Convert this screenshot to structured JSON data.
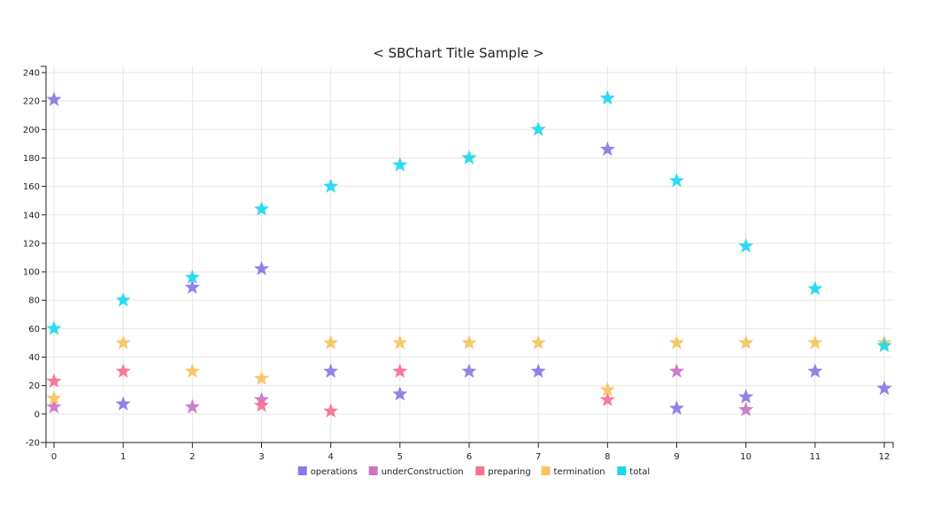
{
  "chart_data": {
    "type": "scatter",
    "title": "< SBChart Title Sample >",
    "marker": "star",
    "grid": true,
    "legend_position": "bottom",
    "x": [
      0,
      1,
      2,
      3,
      4,
      5,
      6,
      7,
      8,
      9,
      10,
      11,
      12
    ],
    "xlim": [
      0,
      12
    ],
    "ylim": [
      -20,
      240
    ],
    "y_ticks": [
      -20,
      0,
      20,
      40,
      60,
      80,
      100,
      120,
      140,
      160,
      180,
      200,
      220,
      240
    ],
    "series": [
      {
        "name": "operations",
        "color": "#8779e7",
        "values": [
          221,
          7,
          89,
          102,
          30,
          14,
          30,
          30,
          186,
          4,
          12,
          30,
          18
        ]
      },
      {
        "name": "underConstruction",
        "color": "#cc73c4",
        "values": [
          5,
          null,
          5,
          10,
          null,
          null,
          null,
          null,
          null,
          30,
          3,
          null,
          null
        ]
      },
      {
        "name": "preparing",
        "color": "#f7708f",
        "values": [
          23,
          30,
          null,
          6,
          2,
          30,
          null,
          null,
          10,
          null,
          null,
          null,
          null
        ]
      },
      {
        "name": "termination",
        "color": "#f9c35e",
        "values": [
          11,
          50,
          30,
          25,
          50,
          50,
          50,
          50,
          17,
          50,
          50,
          50,
          50
        ]
      },
      {
        "name": "total",
        "color": "#1bd8f2",
        "values": [
          60,
          80,
          96,
          144,
          160,
          175,
          180,
          200,
          222,
          164,
          118,
          88,
          48
        ]
      }
    ]
  }
}
